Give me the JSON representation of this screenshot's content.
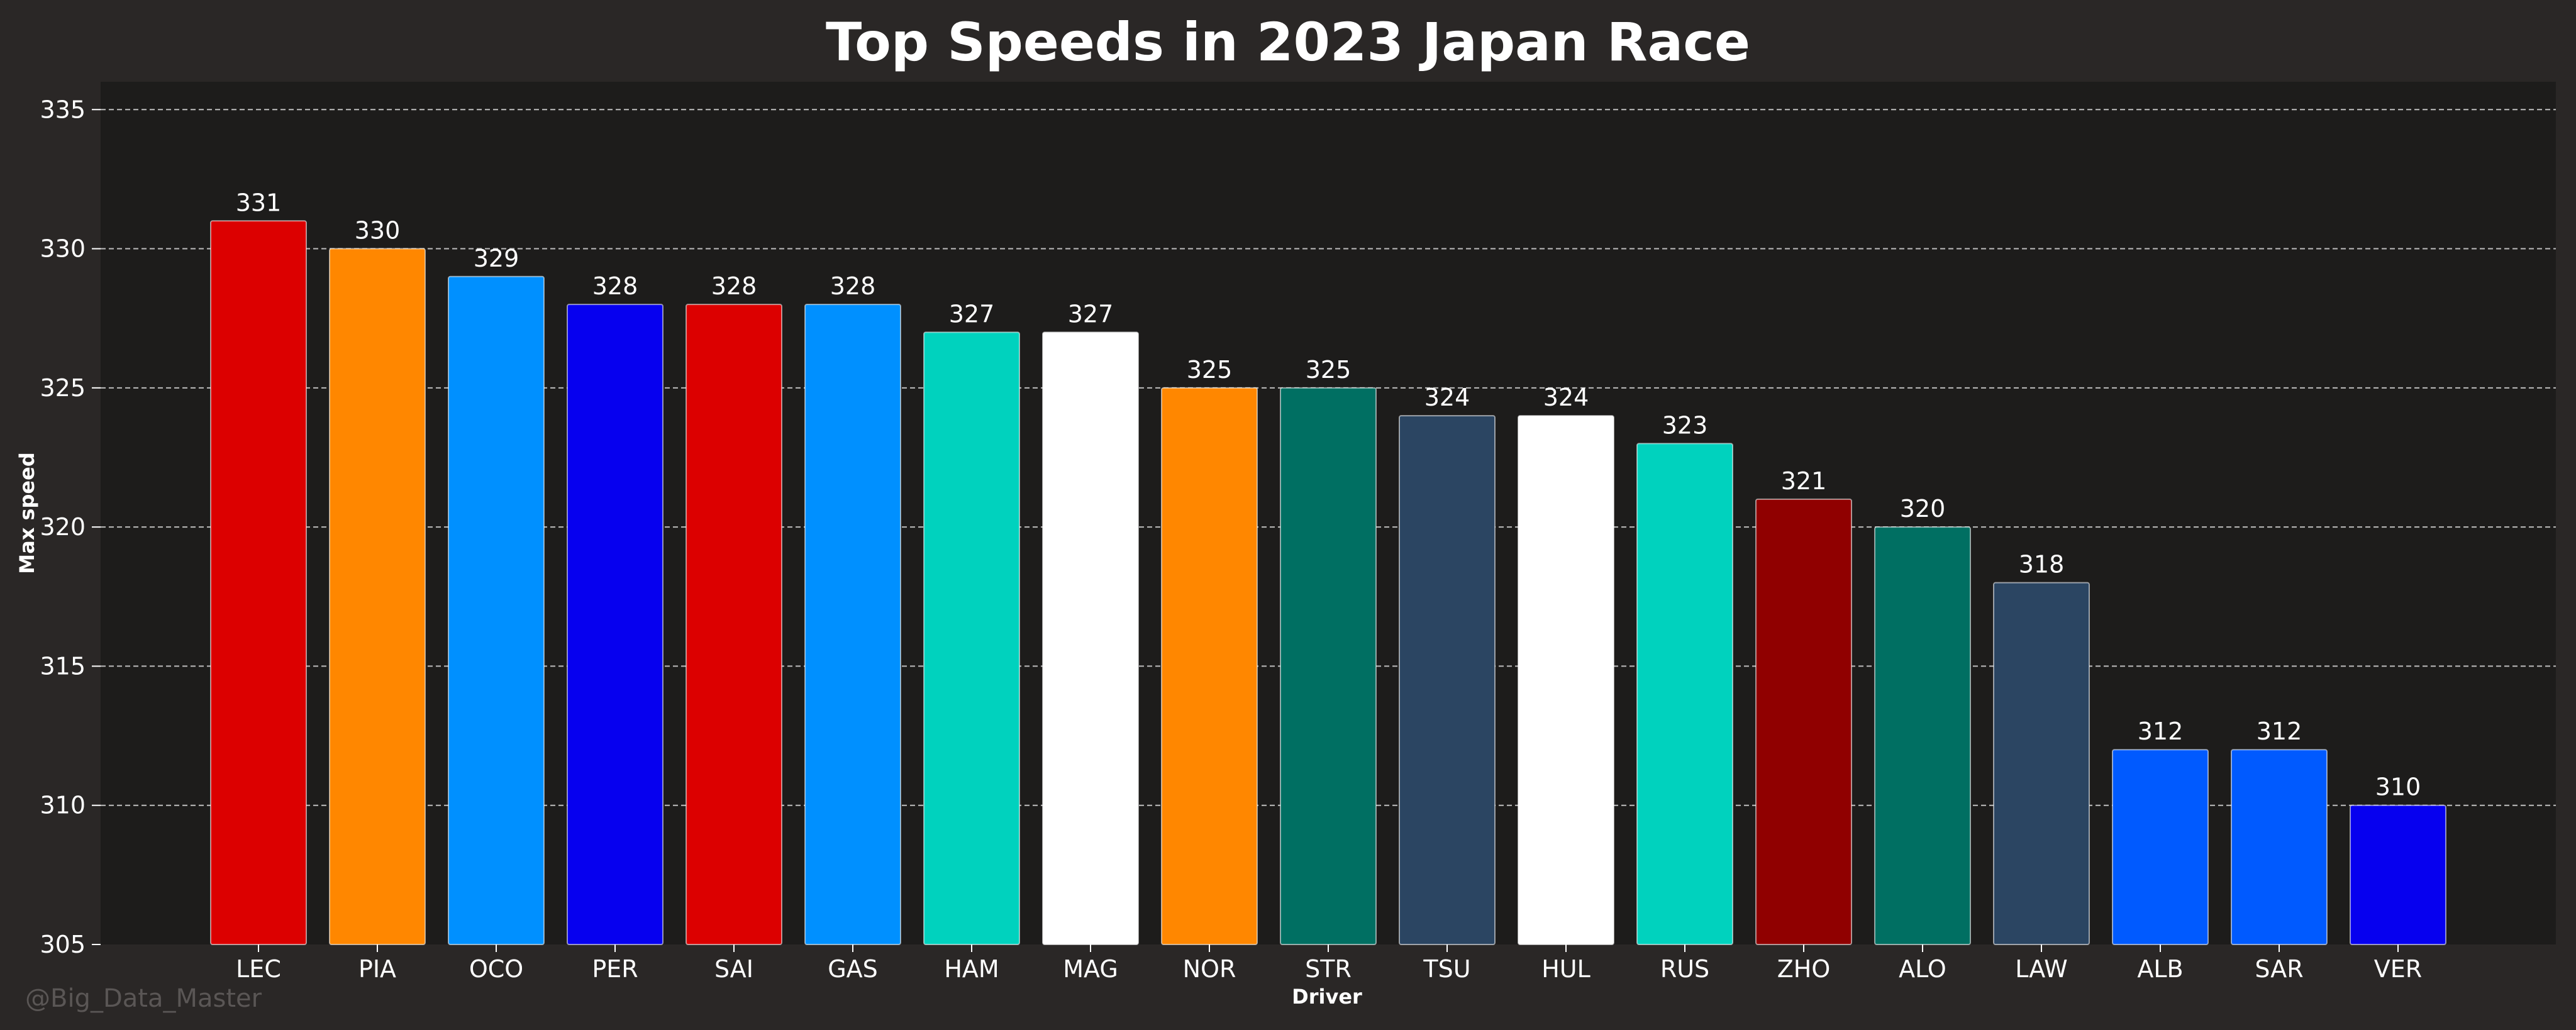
{
  "chart_data": {
    "type": "bar",
    "title": "Top Speeds in 2023 Japan Race",
    "xlabel": "Driver",
    "ylabel": "Max speed",
    "ylim": [
      305,
      336
    ],
    "yticks": [
      305,
      310,
      315,
      320,
      325,
      330,
      335
    ],
    "grid": true,
    "categories": [
      "LEC",
      "PIA",
      "OCO",
      "PER",
      "SAI",
      "GAS",
      "HAM",
      "MAG",
      "NOR",
      "STR",
      "TSU",
      "HUL",
      "RUS",
      "ZHO",
      "ALO",
      "LAW",
      "ALB",
      "SAR",
      "VER"
    ],
    "values": [
      331,
      330,
      329,
      328,
      328,
      328,
      327,
      327,
      325,
      325,
      324,
      324,
      323,
      321,
      320,
      318,
      312,
      312,
      310
    ],
    "colors": [
      "#dc0000",
      "#ff8700",
      "#0090ff",
      "#0600ef",
      "#dc0000",
      "#0090ff",
      "#00d2be",
      "#ffffff",
      "#ff8700",
      "#006f62",
      "#2b4562",
      "#ffffff",
      "#00d2be",
      "#900000",
      "#006f62",
      "#2b4562",
      "#005aff",
      "#005aff",
      "#0600ef"
    ]
  },
  "watermark": "@Big_Data_Master",
  "colors": {
    "background": "#2a2726",
    "plot_background": "#1d1c1b",
    "grid": "#bdbdbd",
    "text": "#ffffff"
  }
}
